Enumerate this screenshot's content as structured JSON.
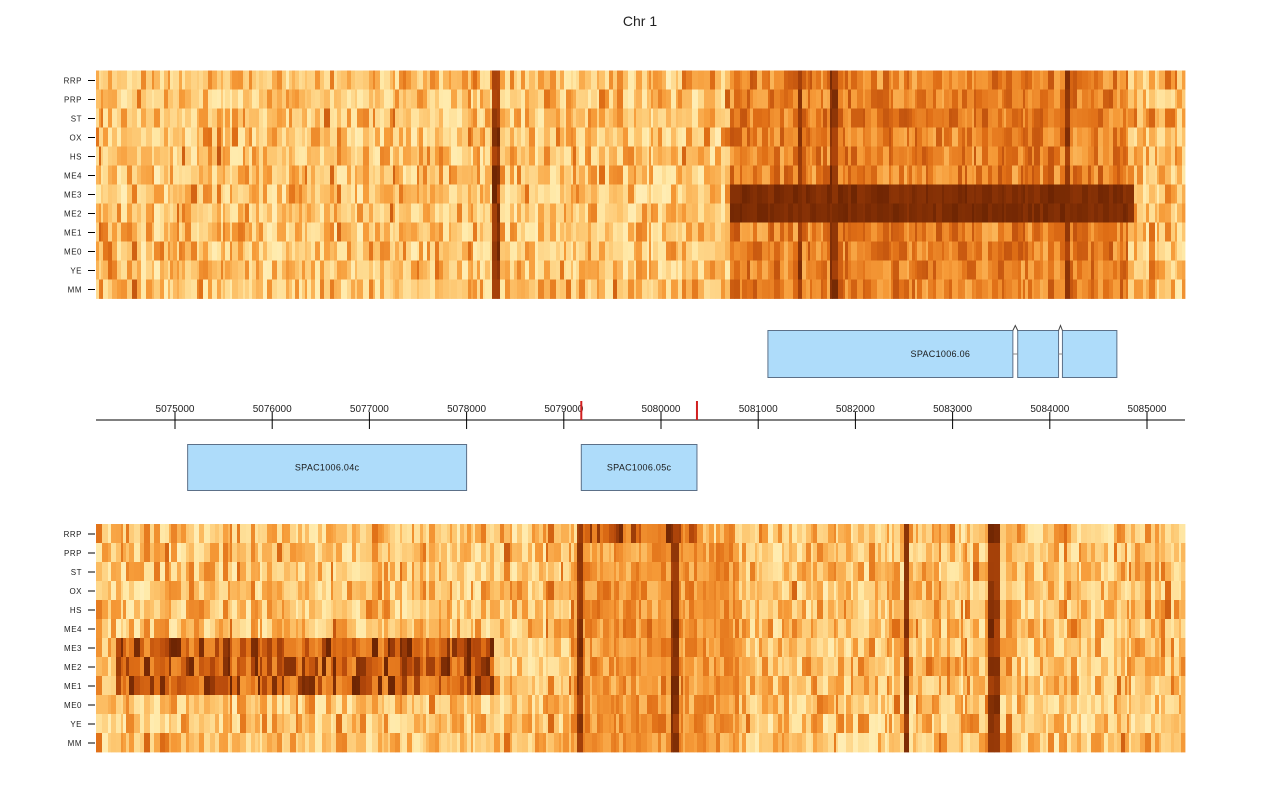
{
  "chart_data": [
    {
      "type": "heatmap",
      "title": "Chr 1",
      "strand": "forward",
      "row_labels": [
        "RRP",
        "PRP",
        "ST",
        "OX",
        "HS",
        "ME4",
        "ME3",
        "ME2",
        "ME1",
        "ME0",
        "YE",
        "MM"
      ],
      "x_range": [
        5074200,
        5085400
      ],
      "color_scale": [
        "#fffbe0",
        "#ffe9a8",
        "#fdc46c",
        "#f69b38",
        "#e06f16",
        "#b84a0b",
        "#6e2503"
      ],
      "hot_regions": [
        {
          "start": 5080700,
          "end": 5084800,
          "rows": [
            "RRP",
            "PRP",
            "ST",
            "OX",
            "HS",
            "ME4",
            "ME1",
            "ME0",
            "YE",
            "MM"
          ],
          "level": 0.72
        },
        {
          "start": 5080700,
          "end": 5084850,
          "rows": [
            "ME3",
            "ME2"
          ],
          "level": 1.0
        }
      ],
      "dark_stripes": [
        5078300,
        5081400,
        5081750,
        5084150
      ]
    },
    {
      "type": "heatmap",
      "strand": "reverse",
      "row_labels": [
        "RRP",
        "PRP",
        "ST",
        "OX",
        "HS",
        "ME4",
        "ME3",
        "ME2",
        "ME1",
        "ME0",
        "YE",
        "MM"
      ],
      "x_range": [
        5074200,
        5085400
      ],
      "color_scale": [
        "#fffbe0",
        "#ffe9a8",
        "#fdc46c",
        "#f69b38",
        "#e06f16",
        "#b84a0b",
        "#6e2503"
      ],
      "hot_regions": [
        {
          "start": 5074400,
          "end": 5078300,
          "rows": [
            "ME3",
            "ME2",
            "ME1"
          ],
          "level": 0.92
        },
        {
          "start": 5079200,
          "end": 5080400,
          "rows": [
            "RRP"
          ],
          "level": 0.9
        },
        {
          "start": 5079100,
          "end": 5080800,
          "rows": [
            "PRP",
            "ST",
            "OX",
            "HS",
            "ME4",
            "ME3",
            "ME2",
            "ME1",
            "ME0",
            "YE",
            "MM"
          ],
          "level": 0.6
        }
      ],
      "dark_stripes": [
        5079150,
        5080100,
        5082500,
        5083400
      ]
    }
  ],
  "axis": {
    "ticks": [
      5075000,
      5076000,
      5077000,
      5078000,
      5079000,
      5080000,
      5081000,
      5082000,
      5083000,
      5084000,
      5085000
    ],
    "tick_labels": [
      "5075000",
      "5076000",
      "5077000",
      "5078000",
      "5079000",
      "5080000",
      "5081000",
      "5082000",
      "5083000",
      "5084000",
      "5085000"
    ],
    "markers": [
      5079180,
      5080370
    ],
    "marker_color": "#d11f1f"
  },
  "genes": {
    "forward": [
      {
        "name": "SPAC1006.06",
        "exons": [
          [
            5081100,
            5083620
          ],
          [
            5083670,
            5084090
          ],
          [
            5084130,
            5084690
          ]
        ]
      }
    ],
    "reverse": [
      {
        "name": "SPAC1006.04c",
        "exons": [
          [
            5075130,
            5078000
          ]
        ]
      },
      {
        "name": "SPAC1006.05c",
        "exons": [
          [
            5079180,
            5080370
          ]
        ]
      }
    ],
    "fill": "#aedcfa",
    "stroke": "#5c7088"
  }
}
